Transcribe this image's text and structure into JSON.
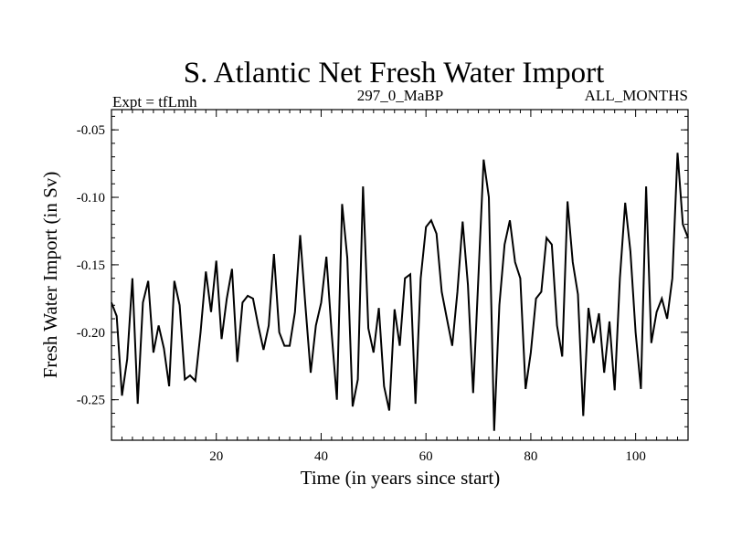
{
  "chart_data": {
    "type": "line",
    "title": "S. Atlantic Net Fresh Water Import",
    "subtitle_left": "Expt = tfLmh",
    "subtitle_center": "297_0_MaBP",
    "subtitle_right": "ALL_MONTHS",
    "xlabel": "Time (in years since start)",
    "ylabel": "Fresh Water Import (in Sv)",
    "xlim": [
      0,
      110
    ],
    "ylim": [
      -0.28,
      -0.035
    ],
    "xticks": [
      20,
      40,
      60,
      80,
      100
    ],
    "yticks": [
      -0.05,
      -0.1,
      -0.15,
      -0.2,
      -0.25
    ],
    "ytick_labels": [
      "-0.05",
      "-0.10",
      "-0.15",
      "-0.20",
      "-0.25"
    ],
    "series": [
      {
        "name": "Fresh Water Import",
        "x": [
          0,
          1,
          2,
          3,
          4,
          5,
          6,
          7,
          8,
          9,
          10,
          11,
          12,
          13,
          14,
          15,
          16,
          17,
          18,
          19,
          20,
          21,
          22,
          23,
          24,
          25,
          26,
          27,
          28,
          29,
          30,
          31,
          32,
          33,
          34,
          35,
          36,
          37,
          38,
          39,
          40,
          41,
          42,
          43,
          44,
          45,
          46,
          47,
          48,
          49,
          50,
          51,
          52,
          53,
          54,
          55,
          56,
          57,
          58,
          59,
          60,
          61,
          62,
          63,
          64,
          65,
          66,
          67,
          68,
          69,
          70,
          71,
          72,
          73,
          74,
          75,
          76,
          77,
          78,
          79,
          80,
          81,
          82,
          83,
          84,
          85,
          86,
          87,
          88,
          89,
          90,
          91,
          92,
          93,
          94,
          95,
          96,
          97,
          98,
          99,
          100,
          101,
          102,
          103,
          104,
          105,
          106,
          107,
          108,
          109,
          110
        ],
        "values": [
          -0.178,
          -0.188,
          -0.247,
          -0.22,
          -0.16,
          -0.253,
          -0.178,
          -0.162,
          -0.215,
          -0.195,
          -0.212,
          -0.24,
          -0.162,
          -0.18,
          -0.235,
          -0.232,
          -0.236,
          -0.2,
          -0.155,
          -0.185,
          -0.147,
          -0.205,
          -0.175,
          -0.153,
          -0.222,
          -0.178,
          -0.173,
          -0.175,
          -0.195,
          -0.213,
          -0.195,
          -0.142,
          -0.2,
          -0.21,
          -0.21,
          -0.185,
          -0.128,
          -0.18,
          -0.23,
          -0.195,
          -0.178,
          -0.144,
          -0.2,
          -0.25,
          -0.105,
          -0.145,
          -0.255,
          -0.235,
          -0.092,
          -0.197,
          -0.215,
          -0.182,
          -0.24,
          -0.258,
          -0.183,
          -0.21,
          -0.16,
          -0.157,
          -0.253,
          -0.16,
          -0.122,
          -0.117,
          -0.127,
          -0.17,
          -0.19,
          -0.21,
          -0.17,
          -0.118,
          -0.165,
          -0.245,
          -0.16,
          -0.072,
          -0.1,
          -0.273,
          -0.18,
          -0.135,
          -0.117,
          -0.148,
          -0.16,
          -0.242,
          -0.215,
          -0.175,
          -0.17,
          -0.13,
          -0.135,
          -0.195,
          -0.218,
          -0.103,
          -0.148,
          -0.172,
          -0.262,
          -0.182,
          -0.208,
          -0.186,
          -0.23,
          -0.192,
          -0.243,
          -0.16,
          -0.104,
          -0.14,
          -0.2,
          -0.242,
          -0.092,
          -0.208,
          -0.185,
          -0.175,
          -0.19,
          -0.16,
          -0.067,
          -0.12,
          -0.13
        ]
      }
    ]
  }
}
